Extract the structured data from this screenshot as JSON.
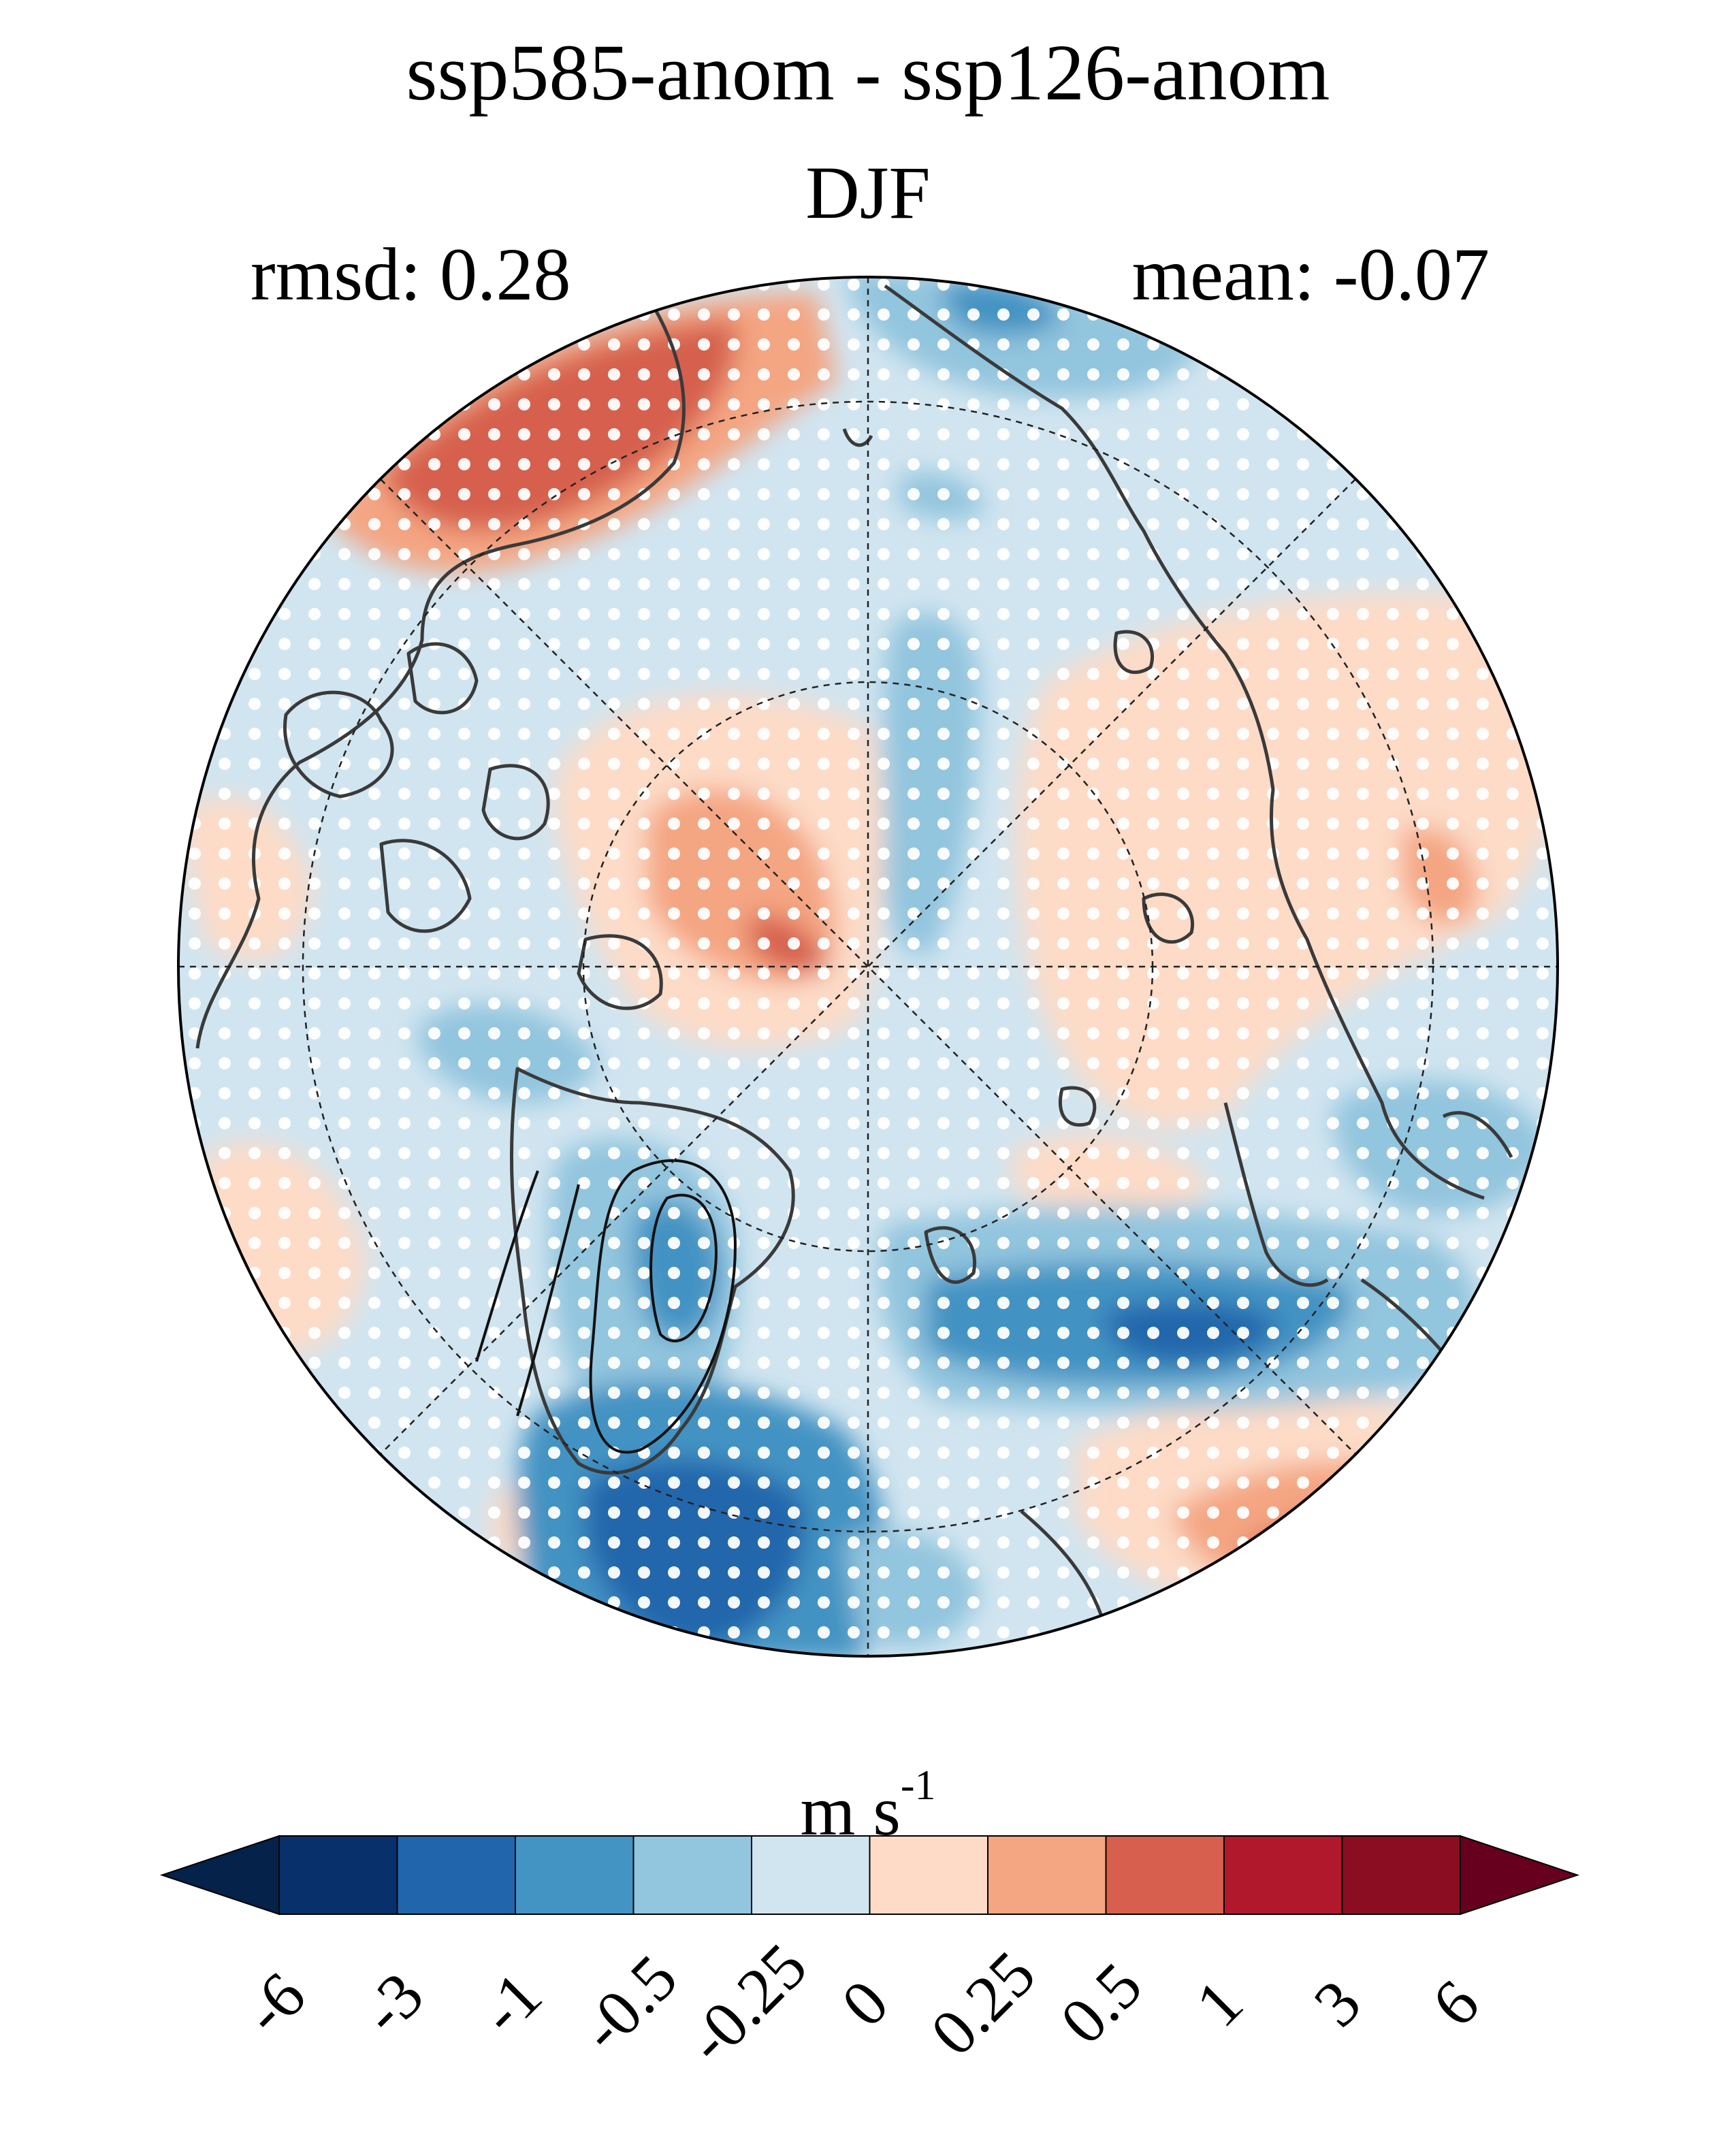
{
  "title": "ssp585-anom - ssp126-anom",
  "season": "DJF",
  "rmsd_label": "rmsd: 0.28",
  "mean_label": "mean: -0.07",
  "colorbar": {
    "unit_base": "m s",
    "unit_exp": "-1",
    "ticks": [
      "-6",
      "-3",
      "-1",
      "-0.5",
      "-0.25",
      "0",
      "0.25",
      "0.5",
      "1",
      "3",
      "6"
    ],
    "colors": [
      "#04224a",
      "#08306b",
      "#2166ac",
      "#4393c3",
      "#92c5de",
      "#d1e5f0",
      "#fddbc7",
      "#f4a582",
      "#d6604d",
      "#b2182b",
      "#8b0d22",
      "#67001f"
    ]
  },
  "map": {
    "projection": "north polar stereographic",
    "variable_units": "m s-1",
    "stippling": "white dots mark significant grid points",
    "contours": "black lines over Greenland"
  }
}
